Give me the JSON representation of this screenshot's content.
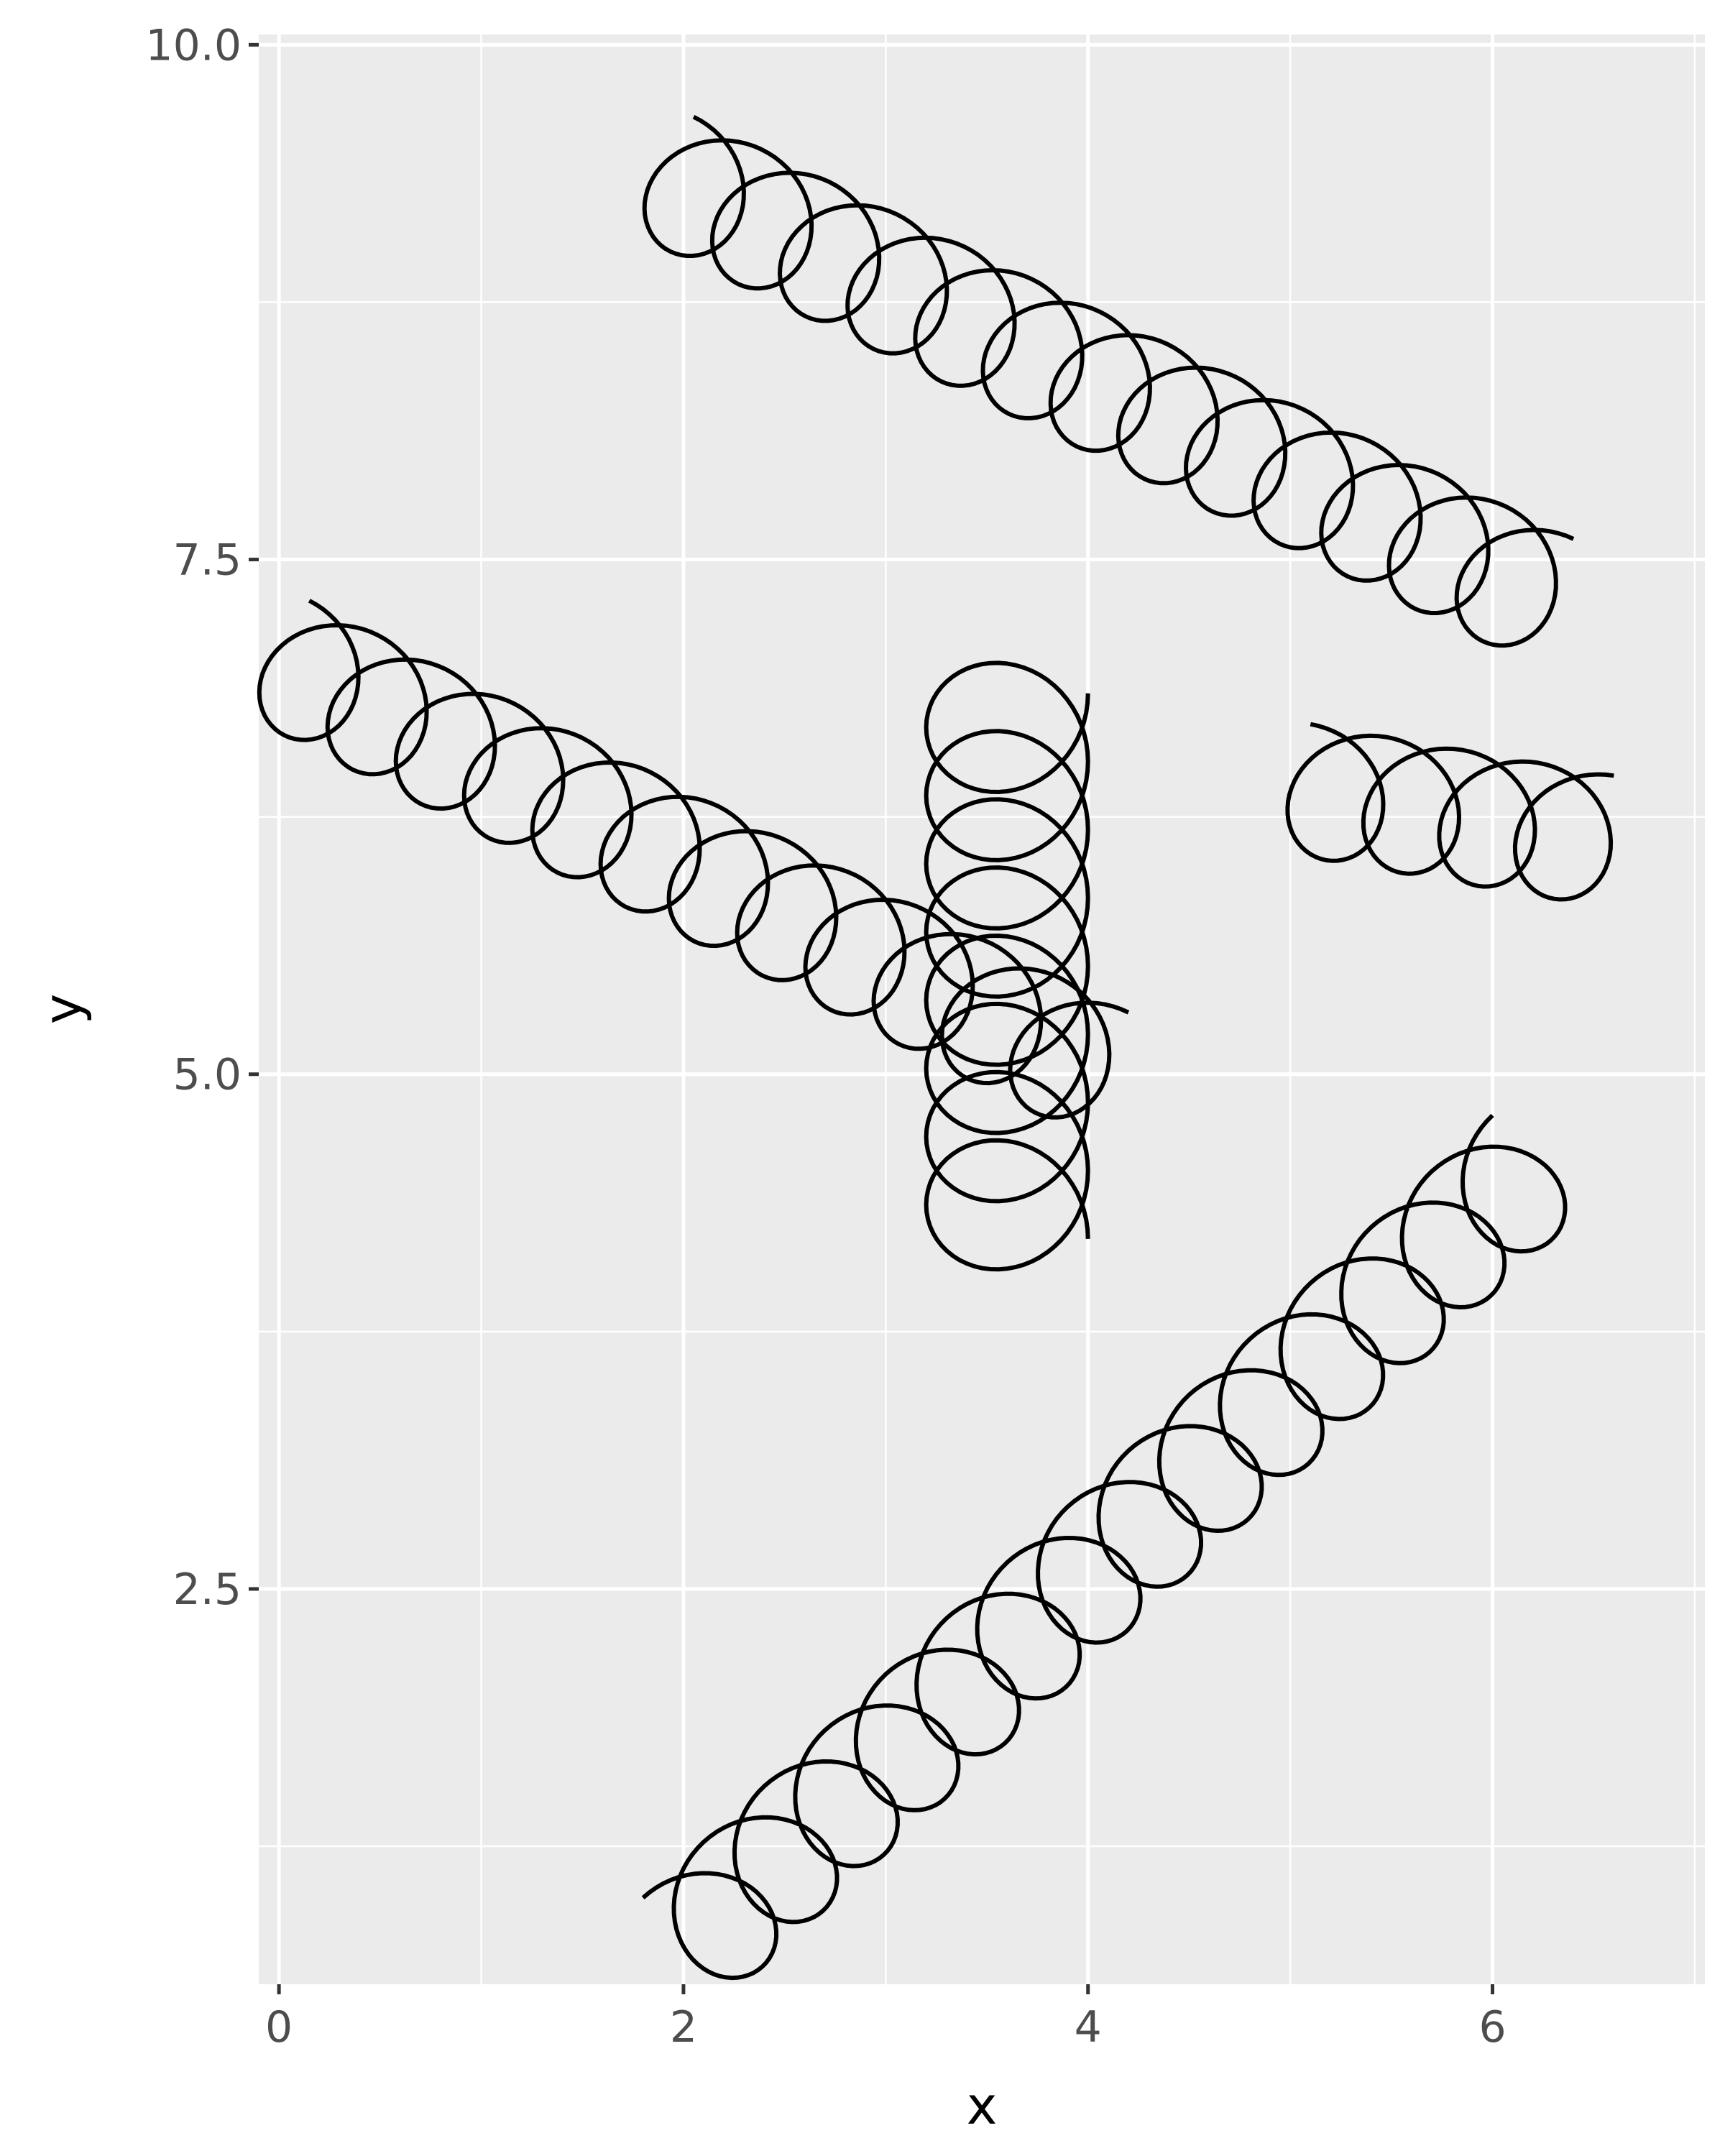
{
  "chart_data": {
    "type": "line",
    "title": "",
    "xlabel": "x",
    "ylabel": "y",
    "xlim": [
      -0.1,
      7.05
    ],
    "ylim": [
      0.58,
      10.05
    ],
    "x_ticks": [
      {
        "value": 0,
        "label": "0"
      },
      {
        "value": 2,
        "label": "2"
      },
      {
        "value": 4,
        "label": "4"
      },
      {
        "value": 6,
        "label": "6"
      }
    ],
    "y_ticks": [
      {
        "value": 2.5,
        "label": "2.5"
      },
      {
        "value": 5.0,
        "label": "5.0"
      },
      {
        "value": 7.5,
        "label": "7.5"
      },
      {
        "value": 10.0,
        "label": "10.0"
      }
    ],
    "x_minor_gridlines": [
      1,
      3,
      5,
      7
    ],
    "y_minor_gridlines": [
      1.25,
      3.75,
      6.25,
      8.75
    ],
    "grid": true,
    "background_color": "#ebebeb",
    "grid_color": "#ffffff",
    "line_color": "#000000",
    "series": [
      {
        "x": [
          1.8,
          6.0
        ],
        "y": [
          1.0,
          4.8
        ],
        "loops": 14,
        "diameter": 0.65
      },
      {
        "x": [
          0.15,
          4.2
        ],
        "y": [
          7.3,
          5.3
        ],
        "loops": 12,
        "diameter": 0.65
      },
      {
        "x": [
          4.0,
          4.0
        ],
        "y": [
          6.85,
          4.2
        ],
        "loops": 8,
        "diameter": 0.8
      },
      {
        "x": [
          2.05,
          6.4
        ],
        "y": [
          9.65,
          7.6
        ],
        "loops": 13,
        "diameter": 0.65
      },
      {
        "x": [
          5.1,
          6.6
        ],
        "y": [
          6.7,
          6.45
        ],
        "loops": 4,
        "diameter": 0.65
      }
    ]
  }
}
